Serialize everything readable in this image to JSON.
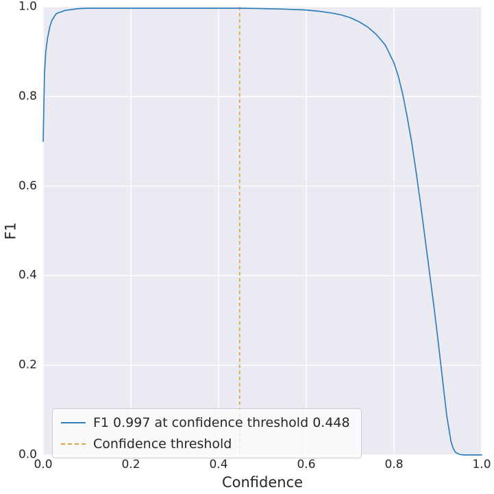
{
  "chart_data": {
    "type": "line",
    "title": "",
    "xlabel": "Confidence",
    "ylabel": "F1",
    "xlim": [
      0.0,
      1.0
    ],
    "ylim": [
      0.0,
      1.0
    ],
    "xticks": [
      0.0,
      0.2,
      0.4,
      0.6,
      0.8,
      1.0
    ],
    "yticks": [
      0.0,
      0.2,
      0.4,
      0.6,
      0.8,
      1.0
    ],
    "grid": true,
    "plot_bg": "#eaeaf2",
    "grid_color": "#ffffff",
    "legend_position": "lower left",
    "series": [
      {
        "name": "F1 0.997 at confidence threshold 0.448",
        "color": "#2e7ebc",
        "x": [
          0.0,
          0.003,
          0.006,
          0.01,
          0.015,
          0.02,
          0.03,
          0.05,
          0.08,
          0.1,
          0.15,
          0.2,
          0.25,
          0.3,
          0.35,
          0.4,
          0.448,
          0.5,
          0.55,
          0.6,
          0.63,
          0.66,
          0.68,
          0.7,
          0.72,
          0.74,
          0.76,
          0.78,
          0.8,
          0.81,
          0.82,
          0.83,
          0.84,
          0.85,
          0.86,
          0.87,
          0.88,
          0.89,
          0.9,
          0.91,
          0.92,
          0.93,
          0.935,
          0.94,
          0.95,
          0.96,
          1.0
        ],
        "y": [
          0.7,
          0.85,
          0.9,
          0.93,
          0.955,
          0.97,
          0.985,
          0.992,
          0.996,
          0.997,
          0.997,
          0.997,
          0.997,
          0.997,
          0.997,
          0.997,
          0.997,
          0.996,
          0.995,
          0.993,
          0.99,
          0.986,
          0.982,
          0.976,
          0.967,
          0.955,
          0.938,
          0.915,
          0.875,
          0.845,
          0.805,
          0.755,
          0.7,
          0.635,
          0.565,
          0.49,
          0.415,
          0.34,
          0.26,
          0.175,
          0.09,
          0.03,
          0.015,
          0.006,
          0.001,
          0.0,
          0.0
        ]
      }
    ],
    "threshold": {
      "x": 0.448,
      "label": "Confidence threshold",
      "color": "#dfa13e",
      "style": "dashed"
    },
    "best_f1": 0.997
  }
}
